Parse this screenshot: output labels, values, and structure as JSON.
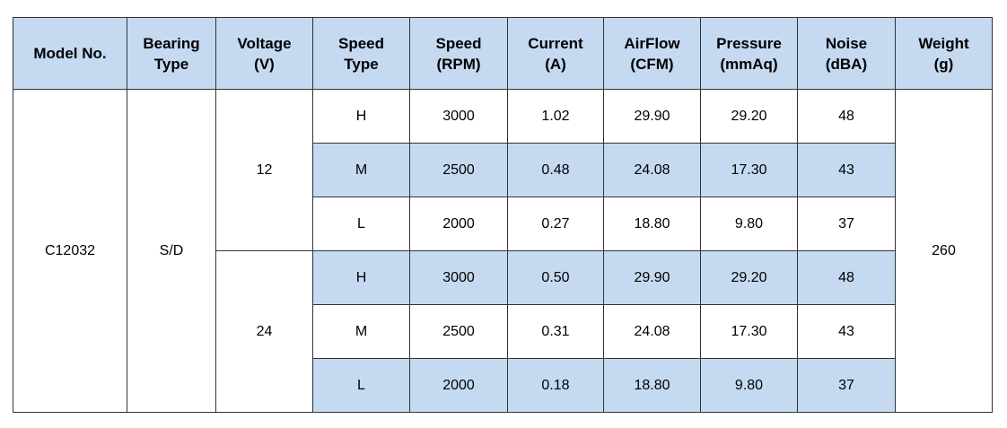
{
  "headers": [
    {
      "line1": "Model No.",
      "line2": ""
    },
    {
      "line1": "Bearing",
      "line2": "Type"
    },
    {
      "line1": "Voltage",
      "line2": "(V)"
    },
    {
      "line1": "Speed",
      "line2": "Type"
    },
    {
      "line1": "Speed",
      "line2": "(RPM)"
    },
    {
      "line1": "Current",
      "line2": "(A)"
    },
    {
      "line1": "AirFlow",
      "line2": "(CFM)"
    },
    {
      "line1": "Pressure",
      "line2": "(mmAq)"
    },
    {
      "line1": "Noise",
      "line2": "(dBA)"
    },
    {
      "line1": "Weight",
      "line2": "(g)"
    }
  ],
  "model": "C12032",
  "bearing": "S/D",
  "weight": "260",
  "voltage_groups": [
    "12",
    "24"
  ],
  "rows": [
    {
      "speed_type": "H",
      "rpm": "3000",
      "current": "1.02",
      "airflow": "29.90",
      "pressure": "29.20",
      "noise": "48"
    },
    {
      "speed_type": "M",
      "rpm": "2500",
      "current": "0.48",
      "airflow": "24.08",
      "pressure": "17.30",
      "noise": "43"
    },
    {
      "speed_type": "L",
      "rpm": "2000",
      "current": "0.27",
      "airflow": "18.80",
      "pressure": "9.80",
      "noise": "37"
    },
    {
      "speed_type": "H",
      "rpm": "3000",
      "current": "0.50",
      "airflow": "29.90",
      "pressure": "29.20",
      "noise": "48"
    },
    {
      "speed_type": "M",
      "rpm": "2500",
      "current": "0.31",
      "airflow": "24.08",
      "pressure": "17.30",
      "noise": "43"
    },
    {
      "speed_type": "L",
      "rpm": "2000",
      "current": "0.18",
      "airflow": "18.80",
      "pressure": "9.80",
      "noise": "37"
    }
  ],
  "colors": {
    "header_bg": "#c5d9f1",
    "shaded_row_bg": "#c5d9f1",
    "border": "#333333"
  }
}
